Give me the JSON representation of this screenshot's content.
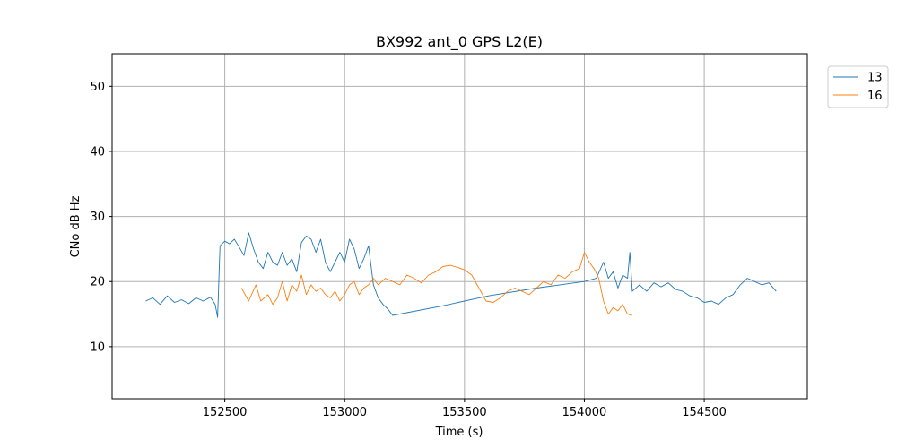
{
  "chart_data": {
    "type": "line",
    "title": "BX992 ant_0 GPS L2(E)",
    "xlabel": "Time (s)",
    "ylabel": "CNo dB Hz",
    "xlim": [
      152030,
      154930
    ],
    "ylim": [
      2,
      55
    ],
    "xticks": [
      152500,
      153000,
      153500,
      154000,
      154500
    ],
    "yticks": [
      10,
      20,
      30,
      40,
      50
    ],
    "grid": true,
    "legend_position": "top-right-outside",
    "series": [
      {
        "name": "13",
        "color": "#1f77b4",
        "points": [
          [
            152170,
            17
          ],
          [
            152200,
            17.5
          ],
          [
            152230,
            16.5
          ],
          [
            152260,
            17.8
          ],
          [
            152290,
            16.8
          ],
          [
            152320,
            17.2
          ],
          [
            152350,
            16.6
          ],
          [
            152380,
            17.5
          ],
          [
            152410,
            17.0
          ],
          [
            152440,
            17.6
          ],
          [
            152460,
            16.5
          ],
          [
            152470,
            14.5
          ],
          [
            152480,
            25.5
          ],
          [
            152500,
            26.2
          ],
          [
            152520,
            25.8
          ],
          [
            152540,
            26.5
          ],
          [
            152560,
            25.3
          ],
          [
            152580,
            24.0
          ],
          [
            152600,
            27.5
          ],
          [
            152620,
            25.0
          ],
          [
            152640,
            23.0
          ],
          [
            152660,
            22.0
          ],
          [
            152680,
            24.5
          ],
          [
            152700,
            23.0
          ],
          [
            152720,
            22.5
          ],
          [
            152740,
            24.5
          ],
          [
            152760,
            22.5
          ],
          [
            152780,
            23.5
          ],
          [
            152800,
            21.5
          ],
          [
            152820,
            26.0
          ],
          [
            152840,
            27.0
          ],
          [
            152860,
            26.5
          ],
          [
            152880,
            24.5
          ],
          [
            152900,
            26.5
          ],
          [
            152920,
            23.0
          ],
          [
            152940,
            21.5
          ],
          [
            152960,
            23.0
          ],
          [
            152980,
            24.5
          ],
          [
            153000,
            23.0
          ],
          [
            153020,
            26.5
          ],
          [
            153040,
            25.0
          ],
          [
            153060,
            22.0
          ],
          [
            153080,
            23.5
          ],
          [
            153100,
            25.5
          ],
          [
            153120,
            19.5
          ],
          [
            153140,
            17.5
          ],
          [
            153160,
            16.5
          ],
          [
            153180,
            15.8
          ],
          [
            153200,
            14.8
          ],
          [
            153400,
            16.2
          ],
          [
            153600,
            17.8
          ],
          [
            153800,
            19.0
          ],
          [
            154000,
            20.0
          ],
          [
            154050,
            20.5
          ],
          [
            154080,
            23.0
          ],
          [
            154100,
            20.5
          ],
          [
            154120,
            21.5
          ],
          [
            154140,
            19.0
          ],
          [
            154160,
            21.0
          ],
          [
            154180,
            20.5
          ],
          [
            154190,
            24.5
          ],
          [
            154200,
            18.5
          ],
          [
            154230,
            19.5
          ],
          [
            154260,
            18.5
          ],
          [
            154290,
            19.8
          ],
          [
            154320,
            19.2
          ],
          [
            154350,
            19.8
          ],
          [
            154380,
            18.8
          ],
          [
            154410,
            18.5
          ],
          [
            154440,
            17.8
          ],
          [
            154470,
            17.5
          ],
          [
            154500,
            16.8
          ],
          [
            154530,
            17.0
          ],
          [
            154560,
            16.5
          ],
          [
            154590,
            17.5
          ],
          [
            154620,
            18.0
          ],
          [
            154650,
            19.5
          ],
          [
            154680,
            20.5
          ],
          [
            154710,
            20.0
          ],
          [
            154740,
            19.5
          ],
          [
            154770,
            19.8
          ],
          [
            154800,
            18.5
          ]
        ]
      },
      {
        "name": "16",
        "color": "#ff7f0e",
        "points": [
          [
            152570,
            19.0
          ],
          [
            152600,
            17.0
          ],
          [
            152630,
            19.5
          ],
          [
            152650,
            17.0
          ],
          [
            152680,
            18.0
          ],
          [
            152700,
            16.5
          ],
          [
            152720,
            17.5
          ],
          [
            152740,
            20.0
          ],
          [
            152760,
            17.0
          ],
          [
            152780,
            19.5
          ],
          [
            152800,
            18.5
          ],
          [
            152820,
            21.0
          ],
          [
            152840,
            18.0
          ],
          [
            152860,
            19.5
          ],
          [
            152880,
            18.5
          ],
          [
            152900,
            19.0
          ],
          [
            152920,
            18.0
          ],
          [
            152940,
            17.5
          ],
          [
            152960,
            18.5
          ],
          [
            152980,
            17.0
          ],
          [
            153000,
            18.0
          ],
          [
            153020,
            19.5
          ],
          [
            153040,
            20.0
          ],
          [
            153060,
            18.0
          ],
          [
            153080,
            19.0
          ],
          [
            153100,
            19.5
          ],
          [
            153120,
            20.5
          ],
          [
            153140,
            19.5
          ],
          [
            153170,
            20.5
          ],
          [
            153200,
            20.0
          ],
          [
            153230,
            19.5
          ],
          [
            153260,
            21.0
          ],
          [
            153290,
            20.5
          ],
          [
            153320,
            19.8
          ],
          [
            153350,
            21.0
          ],
          [
            153380,
            21.5
          ],
          [
            153410,
            22.3
          ],
          [
            153440,
            22.5
          ],
          [
            153470,
            22.2
          ],
          [
            153500,
            21.8
          ],
          [
            153530,
            21.0
          ],
          [
            153560,
            19.0
          ],
          [
            153590,
            17.0
          ],
          [
            153620,
            16.8
          ],
          [
            153650,
            17.5
          ],
          [
            153680,
            18.5
          ],
          [
            153710,
            19.0
          ],
          [
            153740,
            18.5
          ],
          [
            153770,
            18.0
          ],
          [
            153800,
            19.0
          ],
          [
            153830,
            20.0
          ],
          [
            153860,
            19.5
          ],
          [
            153890,
            21.0
          ],
          [
            153920,
            20.5
          ],
          [
            153950,
            21.5
          ],
          [
            153980,
            22.0
          ],
          [
            154000,
            24.5
          ],
          [
            154020,
            23.0
          ],
          [
            154040,
            22.0
          ],
          [
            154060,
            20.5
          ],
          [
            154080,
            17.0
          ],
          [
            154100,
            15.0
          ],
          [
            154120,
            16.0
          ],
          [
            154140,
            15.5
          ],
          [
            154160,
            16.5
          ],
          [
            154180,
            15.0
          ],
          [
            154200,
            14.8
          ]
        ]
      }
    ]
  }
}
